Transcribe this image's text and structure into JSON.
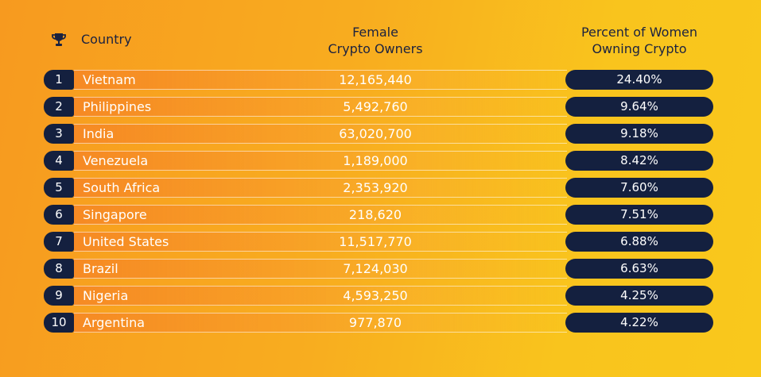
{
  "headers": {
    "country": "Country",
    "owners": "Female\nCrypto Owners",
    "percent": "Percent of Women\nOwning Crypto"
  },
  "colors": {
    "navy": "#14203f",
    "bg_left": "#f79a1f",
    "bg_right": "#f9c81c"
  },
  "icons": {
    "header": "trophy-icon"
  },
  "chart_data": {
    "type": "table",
    "columns": [
      "Rank",
      "Country",
      "Female Crypto Owners",
      "Percent of Women Owning Crypto"
    ],
    "rows": [
      {
        "rank": "1",
        "country": "Vietnam",
        "owners": "12,165,440",
        "percent": "24.40%"
      },
      {
        "rank": "2",
        "country": "Philippines",
        "owners": "5,492,760",
        "percent": "9.64%"
      },
      {
        "rank": "3",
        "country": "India",
        "owners": "63,020,700",
        "percent": "9.18%"
      },
      {
        "rank": "4",
        "country": "Venezuela",
        "owners": "1,189,000",
        "percent": "8.42%"
      },
      {
        "rank": "5",
        "country": "South Africa",
        "owners": "2,353,920",
        "percent": "7.60%"
      },
      {
        "rank": "6",
        "country": "Singapore",
        "owners": "218,620",
        "percent": "7.51%"
      },
      {
        "rank": "7",
        "country": "United States",
        "owners": "11,517,770",
        "percent": "6.88%"
      },
      {
        "rank": "8",
        "country": "Brazil",
        "owners": "7,124,030",
        "percent": "6.63%"
      },
      {
        "rank": "9",
        "country": "Nigeria",
        "owners": "4,593,250",
        "percent": "4.25%"
      },
      {
        "rank": "10",
        "country": "Argentina",
        "owners": "977,870",
        "percent": "4.22%"
      }
    ]
  }
}
